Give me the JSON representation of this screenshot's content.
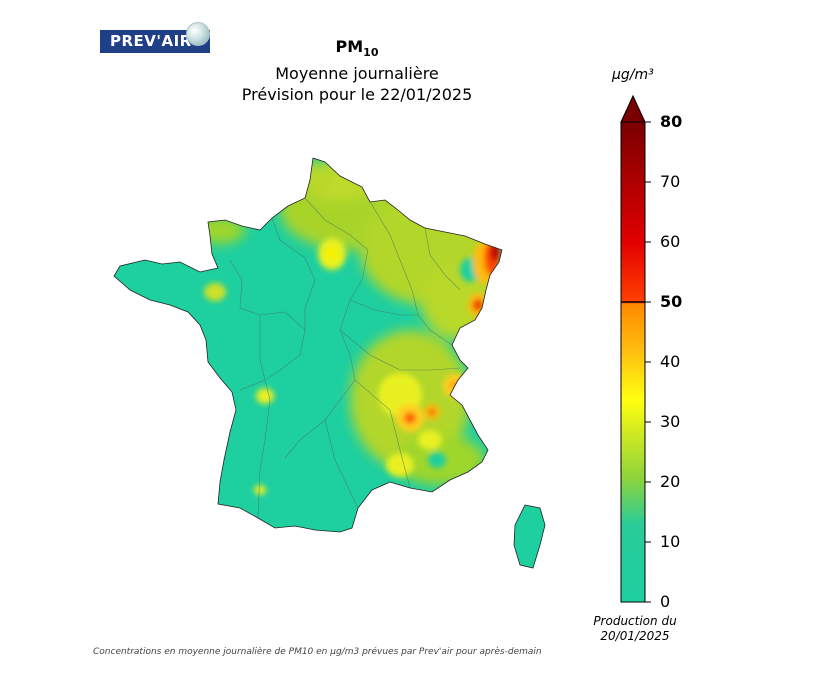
{
  "logo": {
    "text": "PREV'AIR"
  },
  "title": {
    "pollutant": "PM",
    "pollutant_sub": "10",
    "line2": "Moyenne journalière",
    "line3": "Prévision pour le 22/01/2025"
  },
  "colorbar": {
    "unit": "µg/m³",
    "ticks": [
      {
        "value": 0,
        "label": "0",
        "bold": false
      },
      {
        "value": 10,
        "label": "10",
        "bold": false
      },
      {
        "value": 20,
        "label": "20",
        "bold": false
      },
      {
        "value": 30,
        "label": "30",
        "bold": false
      },
      {
        "value": 40,
        "label": "40",
        "bold": false
      },
      {
        "value": 50,
        "label": "50",
        "bold": true
      },
      {
        "value": 60,
        "label": "60",
        "bold": false
      },
      {
        "value": 70,
        "label": "70",
        "bold": false
      },
      {
        "value": 80,
        "label": "80",
        "bold": true
      }
    ],
    "threshold": 50,
    "max": 80,
    "colors": [
      "#1ecfa0",
      "#28c890",
      "#9fd62a",
      "#e8f020",
      "#ffbb10",
      "#ff4a00",
      "#d80000",
      "#8a0000"
    ]
  },
  "production": {
    "line1": "Production du",
    "line2": "20/01/2025"
  },
  "footnote": "Concentrations en moyenne journalière de PM10 en µg/m3 prévues par Prev'air pour après-demain"
}
